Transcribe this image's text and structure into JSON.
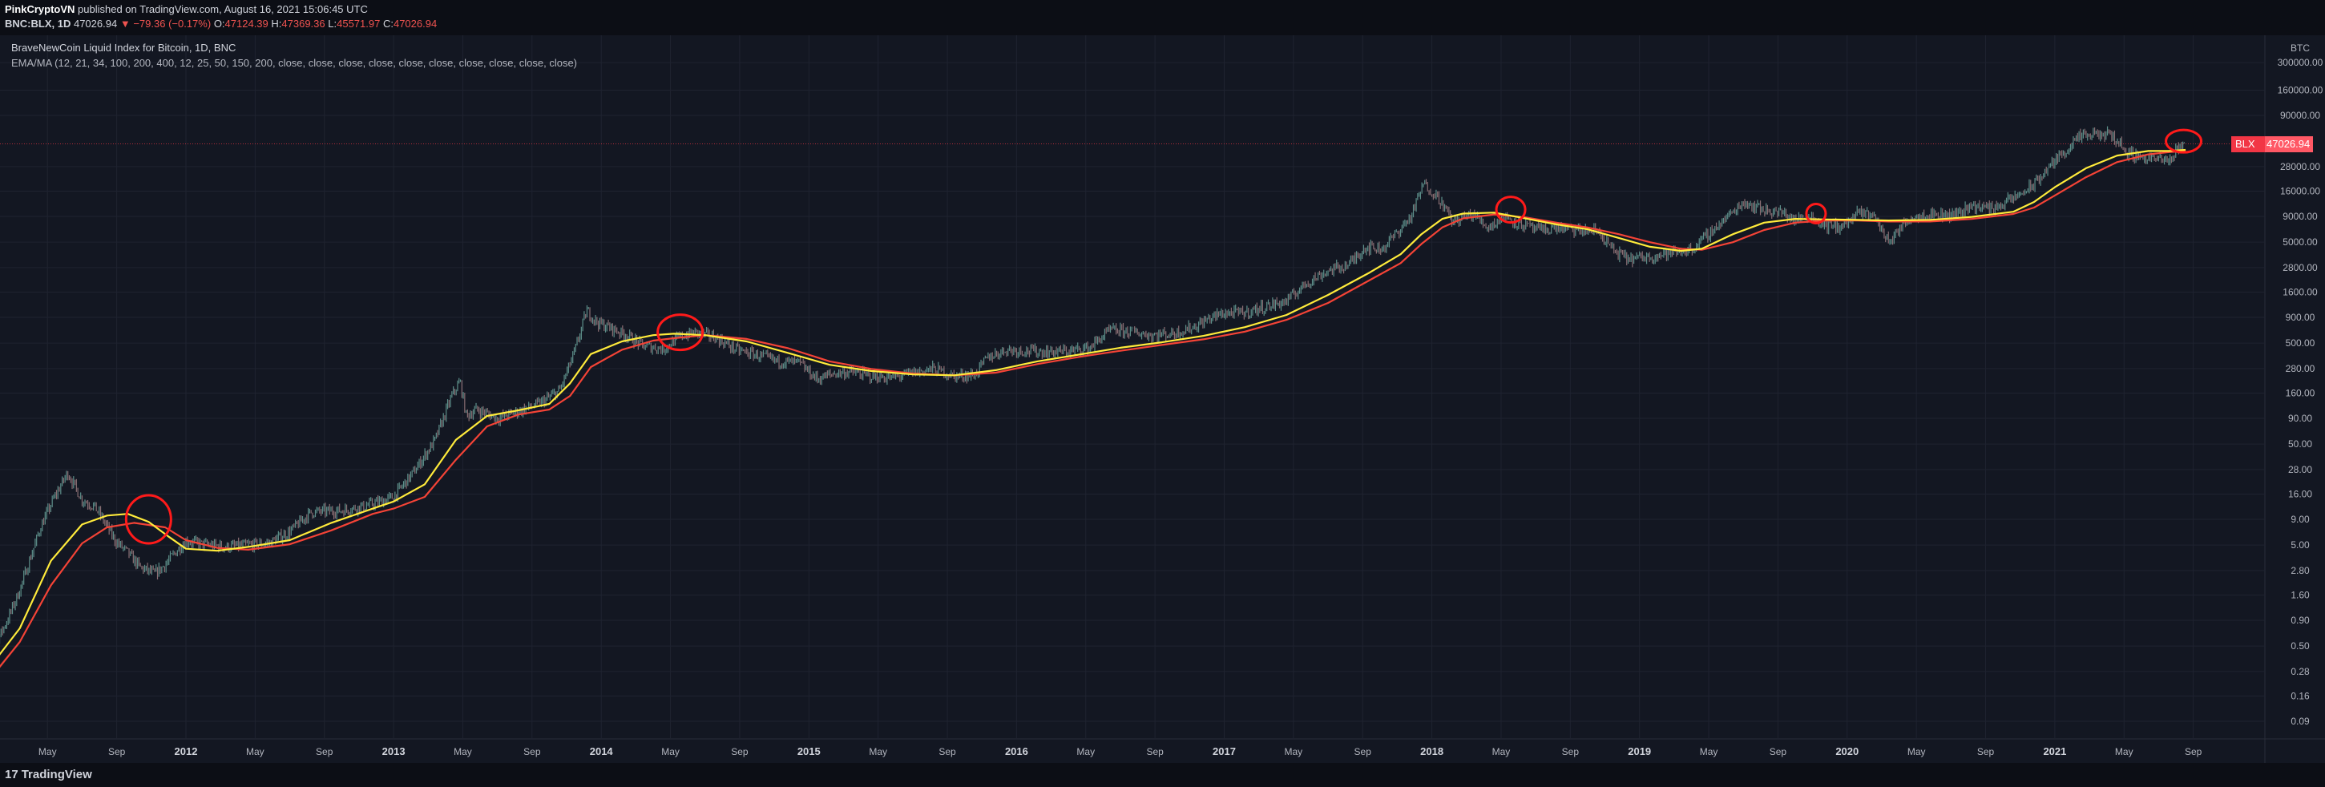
{
  "header": {
    "publisher": "PinkCryptoVN",
    "published_text": "published on TradingView.com, August 16, 2021 15:06:45 UTC",
    "symbol": "BNC:BLX, 1D",
    "last": "47026.94",
    "change_arrow": "▼",
    "change": "−79.36 (−0.17%)",
    "open_label": "O:",
    "open": "47124.39",
    "high_label": "H:",
    "high": "47369.36",
    "low_label": "L:",
    "low": "45571.97",
    "close_label": "C:",
    "close": "47026.94"
  },
  "legend": {
    "title": "BraveNewCoin Liquid Index for Bitcoin, 1D, BNC",
    "indicator": "EMA/MA (12, 21, 34, 100, 200, 400, 12, 25, 50, 150, 200, close, close, close, close, close, close, close, close, close, close)"
  },
  "footer": {
    "brand_mark": "17",
    "brand": "TradingView"
  },
  "price_label": {
    "symbol": "BLX",
    "value": "47026.94"
  },
  "colors": {
    "background": "#131722",
    "grid": "#1f2330",
    "candles": "#8a9098",
    "ema_fast": "#ffeb3b",
    "ma_slow": "#f44336",
    "highlight_circle": "#ff1a1a",
    "current_price": "#f23645"
  },
  "chart_data": {
    "type": "line",
    "ylabel": "BTC",
    "y_scale": "log",
    "y_ticks": [
      "0.09",
      "0.16",
      "0.28",
      "0.50",
      "0.90",
      "1.60",
      "2.80",
      "5.00",
      "9.00",
      "16.00",
      "28.00",
      "50.00",
      "90.00",
      "160.00",
      "280.00",
      "500.00",
      "900.00",
      "1600.00",
      "2800.00",
      "5000.00",
      "9000.00",
      "16000.00",
      "28000.00",
      "90000.00",
      "160000.00",
      "300000.00"
    ],
    "x_ticks": [
      "May",
      "Sep",
      "2012",
      "May",
      "Sep",
      "2013",
      "May",
      "Sep",
      "2014",
      "May",
      "Sep",
      "2015",
      "May",
      "Sep",
      "2016",
      "May",
      "Sep",
      "2017",
      "May",
      "Sep",
      "2018",
      "May",
      "Sep",
      "2019",
      "May",
      "Sep",
      "2020",
      "May",
      "Sep",
      "2021",
      "May",
      "Sep"
    ],
    "current_price": 47026.94,
    "series": [
      {
        "name": "BLX",
        "points": [
          [
            2011.0,
            0.3
          ],
          [
            2011.06,
            0.42
          ],
          [
            2011.14,
            0.9
          ],
          [
            2011.2,
            1.8
          ],
          [
            2011.3,
            7.5
          ],
          [
            2011.36,
            14
          ],
          [
            2011.43,
            26
          ],
          [
            2011.5,
            14
          ],
          [
            2011.56,
            12
          ],
          [
            2011.6,
            9
          ],
          [
            2011.66,
            5.5
          ],
          [
            2011.72,
            4.2
          ],
          [
            2011.78,
            3.0
          ],
          [
            2011.85,
            2.6
          ],
          [
            2011.9,
            3.2
          ],
          [
            2011.96,
            4.5
          ],
          [
            2012.0,
            5.5
          ],
          [
            2012.1,
            5.0
          ],
          [
            2012.2,
            4.8
          ],
          [
            2012.3,
            5.0
          ],
          [
            2012.4,
            5.2
          ],
          [
            2012.5,
            6.8
          ],
          [
            2012.6,
            10.5
          ],
          [
            2012.66,
            10.8
          ],
          [
            2012.75,
            11
          ],
          [
            2012.85,
            12
          ],
          [
            2012.92,
            13.2
          ],
          [
            2013.0,
            15
          ],
          [
            2013.1,
            27
          ],
          [
            2013.2,
            55
          ],
          [
            2013.28,
            150
          ],
          [
            2013.32,
            210
          ],
          [
            2013.35,
            95
          ],
          [
            2013.4,
            110
          ],
          [
            2013.5,
            90
          ],
          [
            2013.6,
            105
          ],
          [
            2013.7,
            125
          ],
          [
            2013.8,
            170
          ],
          [
            2013.87,
            400
          ],
          [
            2013.93,
            1050
          ],
          [
            2013.98,
            800
          ],
          [
            2014.05,
            700
          ],
          [
            2014.12,
            600
          ],
          [
            2014.2,
            470
          ],
          [
            2014.3,
            440
          ],
          [
            2014.38,
            580
          ],
          [
            2014.45,
            640
          ],
          [
            2014.55,
            570
          ],
          [
            2014.65,
            430
          ],
          [
            2014.75,
            380
          ],
          [
            2014.85,
            330
          ],
          [
            2014.95,
            320
          ],
          [
            2015.04,
            220
          ],
          [
            2015.12,
            250
          ],
          [
            2015.2,
            260
          ],
          [
            2015.3,
            235
          ],
          [
            2015.4,
            225
          ],
          [
            2015.5,
            255
          ],
          [
            2015.6,
            280
          ],
          [
            2015.7,
            235
          ],
          [
            2015.8,
            245
          ],
          [
            2015.86,
            360
          ],
          [
            2015.95,
            430
          ],
          [
            2016.05,
            420
          ],
          [
            2016.15,
            410
          ],
          [
            2016.25,
            415
          ],
          [
            2016.35,
            450
          ],
          [
            2016.45,
            670
          ],
          [
            2016.55,
            650
          ],
          [
            2016.65,
            600
          ],
          [
            2016.75,
            620
          ],
          [
            2016.85,
            720
          ],
          [
            2016.95,
            920
          ],
          [
            2017.0,
            990
          ],
          [
            2017.1,
            1000
          ],
          [
            2017.2,
            1150
          ],
          [
            2017.3,
            1300
          ],
          [
            2017.4,
            2000
          ],
          [
            2017.5,
            2600
          ],
          [
            2017.6,
            3000
          ],
          [
            2017.68,
            4500
          ],
          [
            2017.76,
            4300
          ],
          [
            2017.82,
            5800
          ],
          [
            2017.9,
            9000
          ],
          [
            2017.96,
            19000
          ],
          [
            2018.03,
            14000
          ],
          [
            2018.1,
            8000
          ],
          [
            2018.2,
            9500
          ],
          [
            2018.27,
            7000
          ],
          [
            2018.35,
            9000
          ],
          [
            2018.43,
            7500
          ],
          [
            2018.52,
            6500
          ],
          [
            2018.6,
            7000
          ],
          [
            2018.7,
            6500
          ],
          [
            2018.8,
            6400
          ],
          [
            2018.88,
            4000
          ],
          [
            2018.95,
            3400
          ],
          [
            2019.05,
            3600
          ],
          [
            2019.15,
            3900
          ],
          [
            2019.25,
            4200
          ],
          [
            2019.35,
            6500
          ],
          [
            2019.45,
            10000
          ],
          [
            2019.5,
            12500
          ],
          [
            2019.6,
            10500
          ],
          [
            2019.7,
            9600
          ],
          [
            2019.75,
            8200
          ],
          [
            2019.82,
            9200
          ],
          [
            2019.9,
            7200
          ],
          [
            2019.98,
            7200
          ],
          [
            2020.05,
            9500
          ],
          [
            2020.12,
            9700
          ],
          [
            2020.2,
            5000
          ],
          [
            2020.3,
            8800
          ],
          [
            2020.4,
            9500
          ],
          [
            2020.5,
            9200
          ],
          [
            2020.6,
            11500
          ],
          [
            2020.7,
            10800
          ],
          [
            2020.8,
            13500
          ],
          [
            2020.9,
            18500
          ],
          [
            2020.98,
            29000
          ],
          [
            2021.05,
            40000
          ],
          [
            2021.12,
            55000
          ],
          [
            2021.2,
            58000
          ],
          [
            2021.28,
            57000
          ],
          [
            2021.35,
            38000
          ],
          [
            2021.42,
            35000
          ],
          [
            2021.5,
            33000
          ],
          [
            2021.55,
            31000
          ],
          [
            2021.6,
            46000
          ],
          [
            2021.63,
            47026.94
          ]
        ]
      },
      {
        "name": "EMA",
        "points": [
          [
            2011.0,
            0.22
          ],
          [
            2011.2,
            0.75
          ],
          [
            2011.35,
            3.5
          ],
          [
            2011.5,
            8
          ],
          [
            2011.62,
            9.8
          ],
          [
            2011.72,
            10.2
          ],
          [
            2011.82,
            8.5
          ],
          [
            2011.92,
            6.0
          ],
          [
            2012.0,
            4.6
          ],
          [
            2012.15,
            4.4
          ],
          [
            2012.3,
            4.8
          ],
          [
            2012.5,
            5.6
          ],
          [
            2012.7,
            8.3
          ],
          [
            2012.9,
            11.5
          ],
          [
            2013.0,
            13.5
          ],
          [
            2013.15,
            20
          ],
          [
            2013.3,
            55
          ],
          [
            2013.45,
            95
          ],
          [
            2013.6,
            108
          ],
          [
            2013.75,
            125
          ],
          [
            2013.85,
            200
          ],
          [
            2013.95,
            390
          ],
          [
            2014.1,
            520
          ],
          [
            2014.25,
            600
          ],
          [
            2014.35,
            620
          ],
          [
            2014.5,
            600
          ],
          [
            2014.7,
            520
          ],
          [
            2014.9,
            400
          ],
          [
            2015.1,
            305
          ],
          [
            2015.3,
            265
          ],
          [
            2015.5,
            245
          ],
          [
            2015.7,
            240
          ],
          [
            2015.9,
            270
          ],
          [
            2016.1,
            330
          ],
          [
            2016.3,
            385
          ],
          [
            2016.5,
            450
          ],
          [
            2016.7,
            510
          ],
          [
            2016.9,
            590
          ],
          [
            2017.1,
            720
          ],
          [
            2017.3,
            950
          ],
          [
            2017.5,
            1500
          ],
          [
            2017.7,
            2500
          ],
          [
            2017.85,
            3800
          ],
          [
            2017.95,
            6000
          ],
          [
            2018.05,
            8500
          ],
          [
            2018.15,
            9600
          ],
          [
            2018.3,
            9800
          ],
          [
            2018.45,
            8600
          ],
          [
            2018.6,
            7500
          ],
          [
            2018.75,
            6700
          ],
          [
            2018.9,
            5500
          ],
          [
            2019.05,
            4500
          ],
          [
            2019.2,
            4100
          ],
          [
            2019.3,
            4300
          ],
          [
            2019.45,
            6000
          ],
          [
            2019.6,
            7800
          ],
          [
            2019.75,
            8500
          ],
          [
            2019.9,
            8400
          ],
          [
            2020.05,
            8300
          ],
          [
            2020.2,
            8200
          ],
          [
            2020.4,
            8300
          ],
          [
            2020.6,
            8900
          ],
          [
            2020.8,
            10000
          ],
          [
            2020.9,
            12500
          ],
          [
            2021.0,
            17500
          ],
          [
            2021.15,
            27000
          ],
          [
            2021.3,
            36000
          ],
          [
            2021.45,
            40000
          ],
          [
            2021.55,
            40000
          ],
          [
            2021.63,
            41000
          ]
        ]
      },
      {
        "name": "MA",
        "points": [
          [
            2011.0,
            0.17
          ],
          [
            2011.2,
            0.55
          ],
          [
            2011.35,
            2.0
          ],
          [
            2011.5,
            5.2
          ],
          [
            2011.62,
            7.5
          ],
          [
            2011.75,
            8.3
          ],
          [
            2011.9,
            7.5
          ],
          [
            2012.0,
            5.6
          ],
          [
            2012.15,
            4.7
          ],
          [
            2012.3,
            4.5
          ],
          [
            2012.5,
            5.1
          ],
          [
            2012.7,
            7.0
          ],
          [
            2012.9,
            10.2
          ],
          [
            2013.0,
            11.5
          ],
          [
            2013.15,
            15
          ],
          [
            2013.3,
            35
          ],
          [
            2013.45,
            75
          ],
          [
            2013.6,
            98
          ],
          [
            2013.75,
            110
          ],
          [
            2013.85,
            150
          ],
          [
            2013.95,
            290
          ],
          [
            2014.1,
            430
          ],
          [
            2014.25,
            530
          ],
          [
            2014.35,
            560
          ],
          [
            2014.5,
            600
          ],
          [
            2014.7,
            550
          ],
          [
            2014.9,
            445
          ],
          [
            2015.1,
            330
          ],
          [
            2015.3,
            278
          ],
          [
            2015.5,
            250
          ],
          [
            2015.7,
            240
          ],
          [
            2015.9,
            255
          ],
          [
            2016.1,
            310
          ],
          [
            2016.3,
            365
          ],
          [
            2016.5,
            420
          ],
          [
            2016.7,
            480
          ],
          [
            2016.9,
            545
          ],
          [
            2017.1,
            650
          ],
          [
            2017.3,
            850
          ],
          [
            2017.5,
            1250
          ],
          [
            2017.7,
            2100
          ],
          [
            2017.85,
            3100
          ],
          [
            2017.95,
            4800
          ],
          [
            2018.05,
            7000
          ],
          [
            2018.15,
            8600
          ],
          [
            2018.3,
            9400
          ],
          [
            2018.45,
            8800
          ],
          [
            2018.6,
            7800
          ],
          [
            2018.75,
            7000
          ],
          [
            2018.9,
            6000
          ],
          [
            2019.05,
            5000
          ],
          [
            2019.2,
            4300
          ],
          [
            2019.3,
            4200
          ],
          [
            2019.45,
            5000
          ],
          [
            2019.6,
            6600
          ],
          [
            2019.75,
            7800
          ],
          [
            2019.9,
            8200
          ],
          [
            2020.05,
            8200
          ],
          [
            2020.2,
            8000
          ],
          [
            2020.4,
            8000
          ],
          [
            2020.6,
            8500
          ],
          [
            2020.8,
            9500
          ],
          [
            2020.9,
            11000
          ],
          [
            2021.0,
            14500
          ],
          [
            2021.15,
            22000
          ],
          [
            2021.3,
            31000
          ],
          [
            2021.45,
            37000
          ],
          [
            2021.55,
            39000
          ],
          [
            2021.63,
            40000
          ]
        ]
      }
    ],
    "annotations": [
      {
        "type": "circle",
        "x": 2011.82,
        "y": 9.0
      },
      {
        "type": "circle",
        "x": 2014.38,
        "y": 640
      },
      {
        "type": "circle",
        "x": 2018.38,
        "y": 10500
      },
      {
        "type": "circle",
        "x": 2019.85,
        "y": 9600
      },
      {
        "type": "circle",
        "x": 2021.62,
        "y": 50000
      }
    ]
  }
}
